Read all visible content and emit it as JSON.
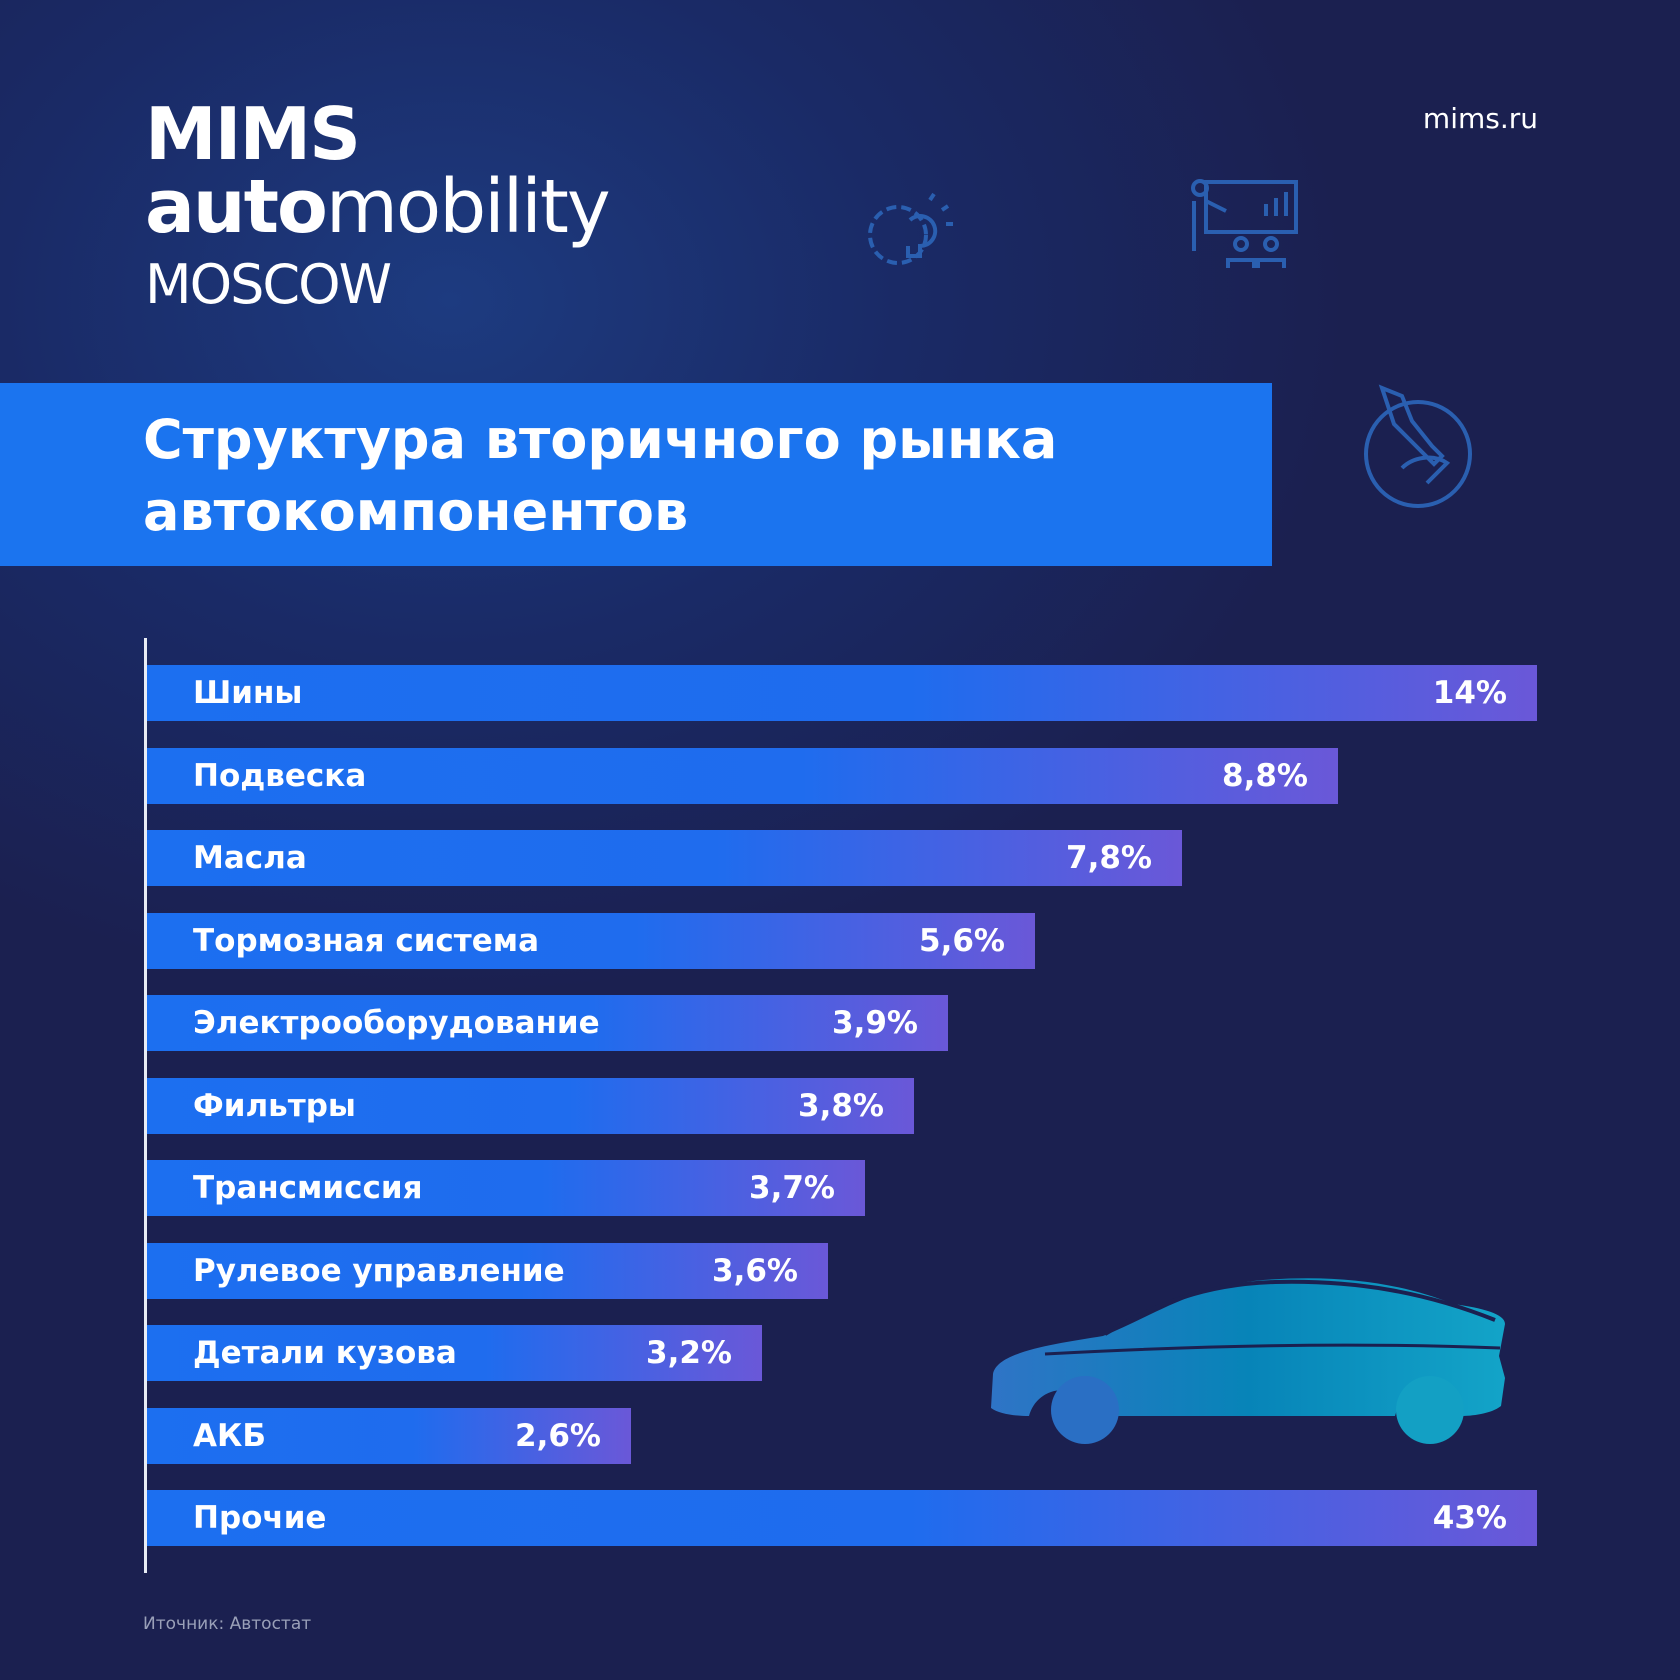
{
  "logo": {
    "line1": "MIMS",
    "line2_bold": "auto",
    "line2_rest": "mobility",
    "line3": "MOSCOW"
  },
  "site": "mims.ru",
  "title_lines": [
    "Структура вторичного рынка",
    "автокомпонентов"
  ],
  "source": "Иточник: Автостат",
  "icons": [
    "gear-lightbulb-icon",
    "presentation-icon",
    "wrench-hand-icon",
    "car-silhouette"
  ],
  "colors": {
    "banner": "#1b74ef",
    "bar_start": "#1c6ff0",
    "bar_end": "#6a58d8",
    "background": "#1b2050"
  },
  "chart_data": {
    "type": "bar",
    "orientation": "horizontal",
    "title": "Структура вторичного рынка автокомпонентов",
    "categories": [
      "Шины",
      "Подвеска",
      "Масла",
      "Тормозная система",
      "Электрооборудование",
      "Фильтры",
      "Трансмиссия",
      "Рулевое управление",
      "Детали кузова",
      "АКБ",
      "Прочие"
    ],
    "values": [
      14,
      8.8,
      7.8,
      5.6,
      3.9,
      3.8,
      3.7,
      3.6,
      3.2,
      2.6,
      43
    ],
    "value_labels": [
      "14%",
      "8,8%",
      "7,8%",
      "5,6%",
      "3,9%",
      "3,8%",
      "3,7%",
      "3,6%",
      "3,2%",
      "2,6%",
      "43%"
    ],
    "unit": "%",
    "xlabel": "",
    "ylabel": "",
    "grid": false
  }
}
